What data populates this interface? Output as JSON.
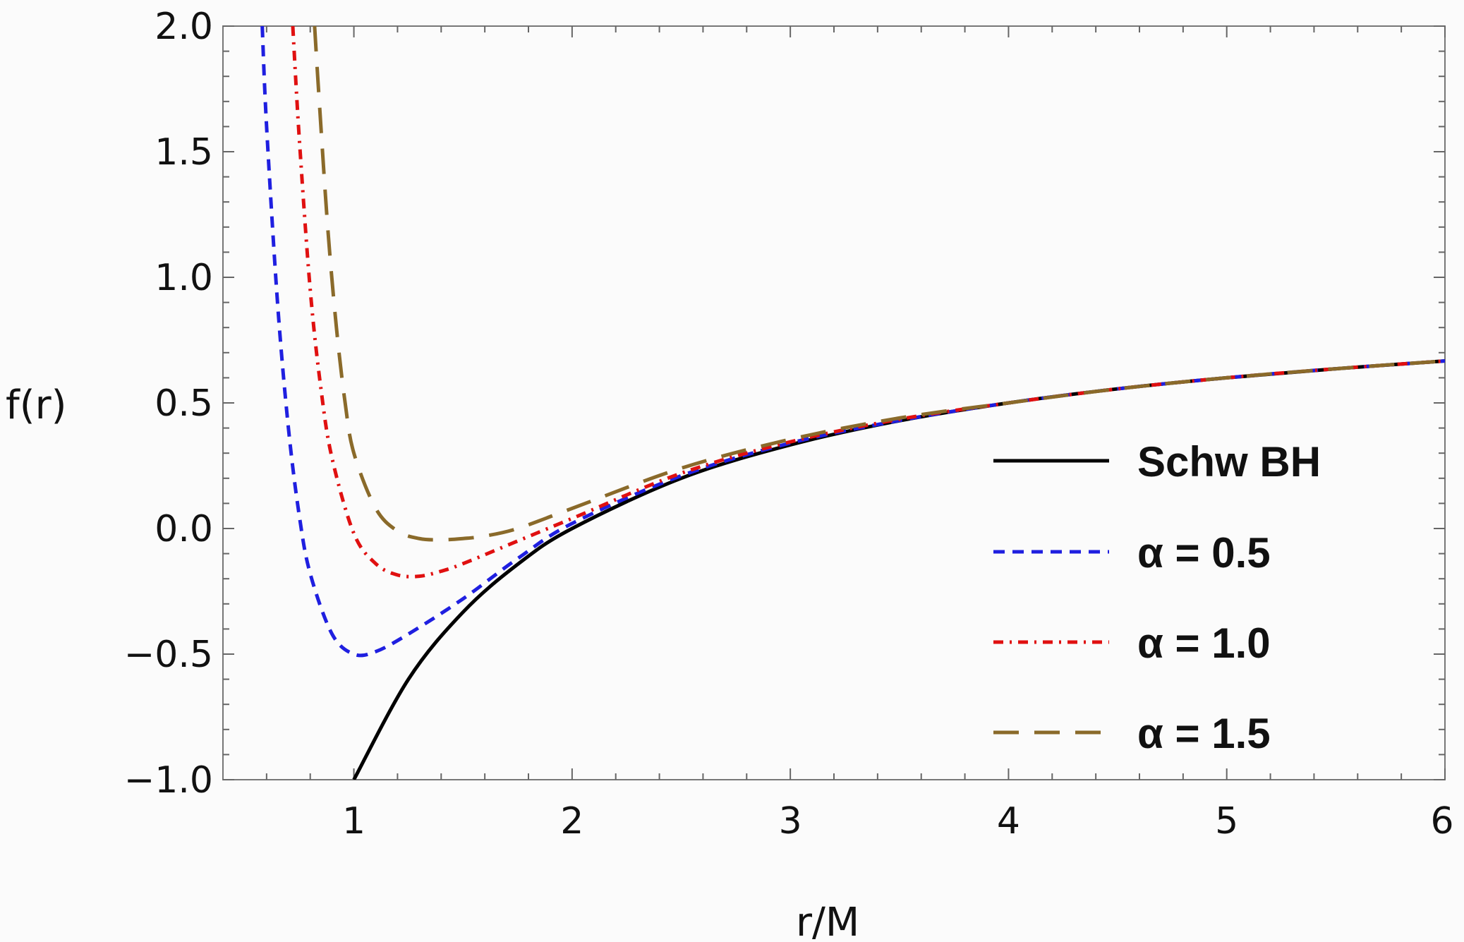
{
  "chart_data": {
    "type": "line",
    "xlabel": "r/M",
    "ylabel": "f(r)",
    "xlim": [
      0.4,
      6
    ],
    "ylim": [
      -1.0,
      2.0
    ],
    "x_ticks": [
      1,
      2,
      3,
      4,
      5,
      6
    ],
    "x_tick_labels": [
      "1",
      "2",
      "3",
      "4",
      "5",
      "6"
    ],
    "y_ticks": [
      -1.0,
      -0.5,
      0.0,
      0.5,
      1.0,
      1.5,
      2.0
    ],
    "y_tick_labels": [
      "−1.0",
      "−0.5",
      "0.0",
      "0.5",
      "1.0",
      "1.5",
      "2.0"
    ],
    "grid": false,
    "legend_position": "right",
    "series": [
      {
        "name": "Schw BH",
        "color": "#000000",
        "style": "solid",
        "x": [
          1.0,
          1.25,
          1.5,
          1.75,
          2.0,
          2.5,
          3.0,
          3.5,
          4.0,
          4.5,
          5.0,
          5.5,
          6.0
        ],
        "y": [
          -1.0,
          -0.6,
          -0.333,
          -0.143,
          0.0,
          0.2,
          0.333,
          0.429,
          0.5,
          0.556,
          0.6,
          0.636,
          0.667
        ]
      },
      {
        "name": "α = 0.5",
        "color": "#1f1fe0",
        "style": "dashed",
        "x": [
          0.58,
          0.6,
          0.65,
          0.7,
          0.75,
          0.8,
          0.9,
          1.0,
          1.1,
          1.25,
          1.5,
          1.75,
          2.0,
          2.5,
          3.0,
          3.5,
          4.0,
          4.5,
          5.0,
          5.5,
          6.0
        ],
        "y": [
          2.0,
          1.6,
          0.9,
          0.4,
          0.05,
          -0.18,
          -0.42,
          -0.5,
          -0.49,
          -0.42,
          -0.28,
          -0.12,
          0.02,
          0.21,
          0.34,
          0.43,
          0.5,
          0.556,
          0.6,
          0.636,
          0.667
        ]
      },
      {
        "name": "α = 1.0",
        "color": "#e01010",
        "style": "dashdot",
        "x": [
          0.72,
          0.75,
          0.8,
          0.85,
          0.9,
          1.0,
          1.1,
          1.2,
          1.3,
          1.4,
          1.5,
          1.75,
          2.0,
          2.5,
          3.0,
          3.5,
          4.0,
          4.5,
          5.0,
          5.5,
          6.0
        ],
        "y": [
          2.0,
          1.55,
          0.95,
          0.55,
          0.28,
          -0.02,
          -0.14,
          -0.185,
          -0.19,
          -0.17,
          -0.14,
          -0.05,
          0.04,
          0.22,
          0.345,
          0.435,
          0.5,
          0.556,
          0.6,
          0.636,
          0.667
        ]
      },
      {
        "name": "α = 1.5",
        "color": "#8a6a2a",
        "style": "longdash",
        "x": [
          0.82,
          0.84,
          0.88,
          0.92,
          0.96,
          1.0,
          1.1,
          1.2,
          1.3,
          1.4,
          1.5,
          1.6,
          1.75,
          2.0,
          2.5,
          3.0,
          3.5,
          4.0,
          4.5,
          5.0,
          5.5,
          6.0
        ],
        "y": [
          2.0,
          1.72,
          1.2,
          0.8,
          0.5,
          0.3,
          0.08,
          -0.01,
          -0.04,
          -0.045,
          -0.04,
          -0.03,
          0.0,
          0.08,
          0.24,
          0.355,
          0.44,
          0.5,
          0.556,
          0.6,
          0.636,
          0.667
        ]
      }
    ]
  }
}
